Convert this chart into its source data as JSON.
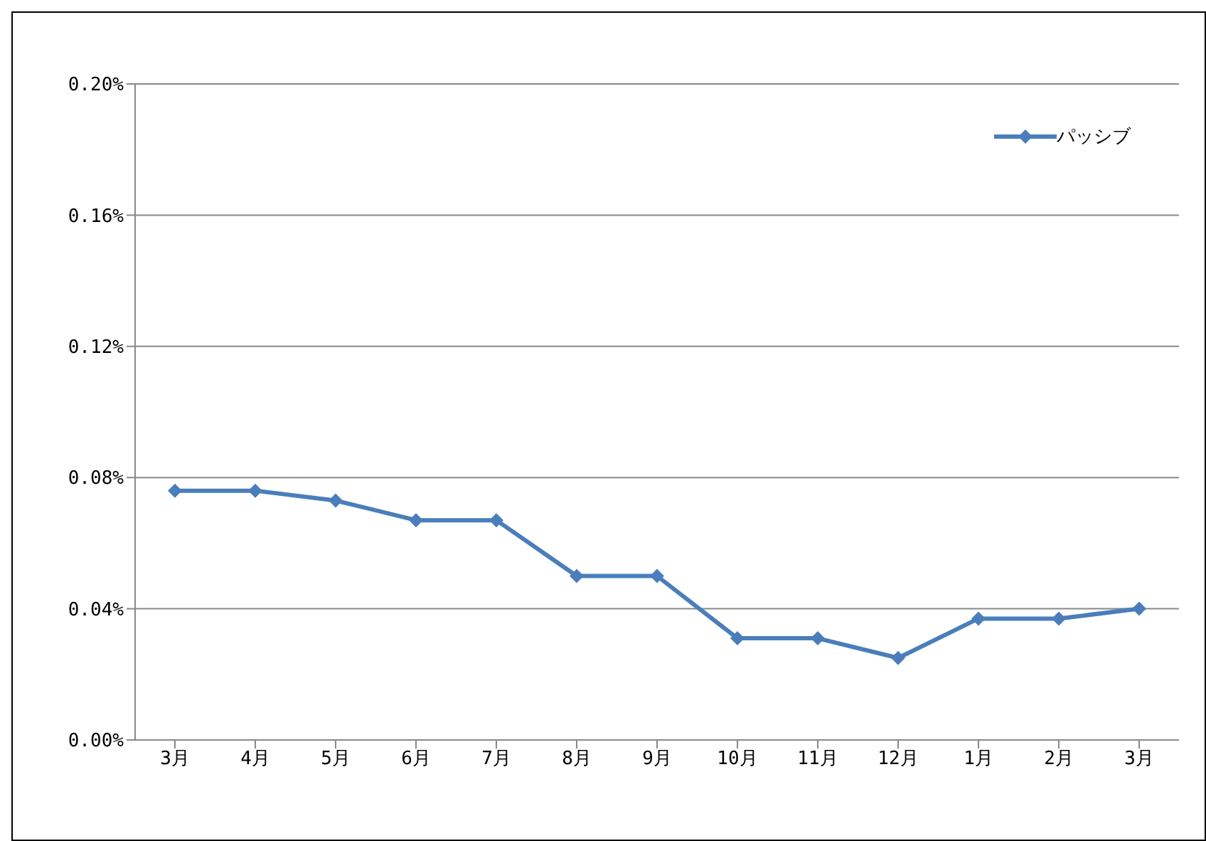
{
  "chart_data": {
    "type": "line",
    "categories": [
      "3月",
      "4月",
      "5月",
      "6月",
      "7月",
      "8月",
      "9月",
      "10月",
      "11月",
      "12月",
      "1月",
      "2月",
      "3月"
    ],
    "series": [
      {
        "name": "パッシブ",
        "color": "#4a7ebb",
        "values": [
          0.076,
          0.076,
          0.073,
          0.067,
          0.067,
          0.05,
          0.05,
          0.031,
          0.031,
          0.025,
          0.037,
          0.037,
          0.04
        ]
      }
    ],
    "ylim": [
      0,
      0.2
    ],
    "yticks": [
      {
        "value": 0,
        "label": "0.00%"
      },
      {
        "value": 0.04,
        "label": "0.04%"
      },
      {
        "value": 0.08,
        "label": "0.08%"
      },
      {
        "value": 0.12,
        "label": "0.12%"
      },
      {
        "value": 0.16,
        "label": "0.16%"
      },
      {
        "value": 0.2,
        "label": "0.20%"
      }
    ],
    "grid": "y",
    "legend": "top right",
    "marker": "diamond",
    "line_style": "solid"
  }
}
